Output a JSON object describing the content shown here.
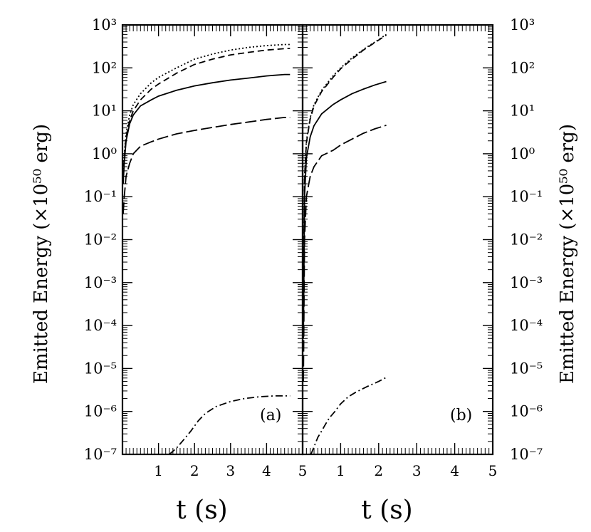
{
  "chart_data": [
    {
      "panel": "a",
      "type": "line",
      "panel_label": "(a)",
      "xlabel": "t (s)",
      "ylabel": "Emitted Energy (×10⁵⁰ erg)",
      "yscale": "log",
      "xlim": [
        0,
        5
      ],
      "ylim": [
        1e-07,
        1000
      ],
      "x_ticks": [
        "1",
        "2",
        "3",
        "4",
        "5"
      ],
      "y_ticks": [
        "10⁻⁷",
        "10⁻⁶",
        "10⁻⁵",
        "10⁻⁴",
        "10⁻³",
        "10⁻²",
        "10⁻¹",
        "10⁰",
        "10¹",
        "10²",
        "10³"
      ],
      "series": [
        {
          "style": "dotted",
          "x": [
            0.02,
            0.05,
            0.1,
            0.2,
            0.3,
            0.5,
            0.8,
            1.0,
            1.5,
            2.0,
            2.5,
            3.0,
            3.5,
            4.0,
            4.5,
            4.65
          ],
          "y": [
            0.3,
            1.0,
            3.0,
            8.0,
            14,
            25,
            45,
            60,
            100,
            160,
            210,
            260,
            300,
            330,
            350,
            350
          ]
        },
        {
          "style": "dashed",
          "x": [
            0.02,
            0.05,
            0.1,
            0.2,
            0.3,
            0.5,
            0.8,
            1.0,
            1.5,
            2.0,
            2.5,
            3.0,
            3.5,
            4.0,
            4.5,
            4.65
          ],
          "y": [
            0.3,
            0.8,
            2.5,
            6.0,
            10,
            18,
            32,
            42,
            75,
            120,
            160,
            200,
            230,
            260,
            280,
            285
          ]
        },
        {
          "style": "solid",
          "x": [
            0.02,
            0.05,
            0.1,
            0.2,
            0.3,
            0.5,
            0.8,
            1.0,
            1.5,
            2.0,
            2.5,
            3.0,
            3.5,
            4.0,
            4.5,
            4.65
          ],
          "y": [
            0.2,
            0.6,
            2.0,
            5.0,
            8.0,
            13,
            18,
            22,
            30,
            38,
            45,
            52,
            58,
            65,
            70,
            70
          ]
        },
        {
          "style": "long-dash",
          "x": [
            0.02,
            0.05,
            0.1,
            0.2,
            0.3,
            0.5,
            0.8,
            1.0,
            1.5,
            2.0,
            2.5,
            3.0,
            3.5,
            4.0,
            4.5,
            4.65
          ],
          "y": [
            0.04,
            0.1,
            0.3,
            0.6,
            1.0,
            1.5,
            1.9,
            2.2,
            2.9,
            3.5,
            4.1,
            4.8,
            5.5,
            6.3,
            7.0,
            7.0
          ]
        },
        {
          "style": "dash-dot",
          "x": [
            1.3,
            1.5,
            1.7,
            1.9,
            2.1,
            2.3,
            2.6,
            3.0,
            3.4,
            3.8,
            4.2,
            4.65
          ],
          "y": [
            1e-07,
            1.4e-07,
            2.2e-07,
            3.5e-07,
            6e-07,
            9e-07,
            1.3e-06,
            1.7e-06,
            2e-06,
            2.2e-06,
            2.3e-06,
            2.3e-06
          ]
        }
      ]
    },
    {
      "panel": "b",
      "type": "line",
      "panel_label": "(b)",
      "xlabel": "t (s)",
      "ylabel": "Emitted Energy (×10⁵⁰ erg)",
      "yscale": "log",
      "xlim": [
        0,
        5
      ],
      "ylim": [
        1e-07,
        1000
      ],
      "x_ticks": [
        "1",
        "2",
        "3",
        "4",
        "5"
      ],
      "y_ticks": [
        "10⁻⁷",
        "10⁻⁶",
        "10⁻⁵",
        "10⁻⁴",
        "10⁻³",
        "10⁻²",
        "10⁻¹",
        "10⁰",
        "10¹",
        "10²",
        "10³"
      ],
      "series": [
        {
          "style": "dotted",
          "x": [
            0.02,
            0.05,
            0.1,
            0.2,
            0.3,
            0.5,
            0.8,
            1.0,
            1.3,
            1.6,
            1.9,
            2.2
          ],
          "y": [
            0.0003,
            0.3,
            2.0,
            7.0,
            14,
            30,
            65,
            100,
            170,
            270,
            400,
            600
          ]
        },
        {
          "style": "dashed",
          "x": [
            0.02,
            0.05,
            0.1,
            0.2,
            0.3,
            0.5,
            0.8,
            1.0,
            1.3,
            1.6,
            1.9,
            2.2
          ],
          "y": [
            0.0002,
            0.25,
            1.8,
            6.5,
            13,
            28,
            60,
            95,
            160,
            260,
            390,
            580
          ]
        },
        {
          "style": "solid",
          "x": [
            0.02,
            0.05,
            0.1,
            0.2,
            0.3,
            0.5,
            0.8,
            1.0,
            1.3,
            1.6,
            1.9,
            2.2
          ],
          "y": [
            5e-05,
            0.1,
            0.8,
            2.5,
            4.5,
            8.5,
            14,
            18,
            25,
            32,
            40,
            48
          ]
        },
        {
          "style": "long-dash",
          "x": [
            0.02,
            0.05,
            0.1,
            0.2,
            0.3,
            0.5,
            0.8,
            1.0,
            1.3,
            1.6,
            1.9,
            2.2
          ],
          "y": [
            5e-06,
            0.01,
            0.1,
            0.3,
            0.5,
            0.9,
            1.2,
            1.6,
            2.2,
            3.0,
            3.8,
            4.6
          ]
        },
        {
          "style": "dash-dot",
          "x": [
            0.22,
            0.3,
            0.4,
            0.5,
            0.6,
            0.7,
            0.85,
            1.0,
            1.2,
            1.4,
            1.7,
            2.0,
            2.2
          ],
          "y": [
            1e-07,
            1.5e-07,
            2.5e-07,
            3.5e-07,
            5e-07,
            7e-07,
            1e-06,
            1.5e-06,
            2.2e-06,
            2.8e-06,
            3.8e-06,
            5e-06,
            6.2e-06
          ]
        }
      ]
    }
  ]
}
